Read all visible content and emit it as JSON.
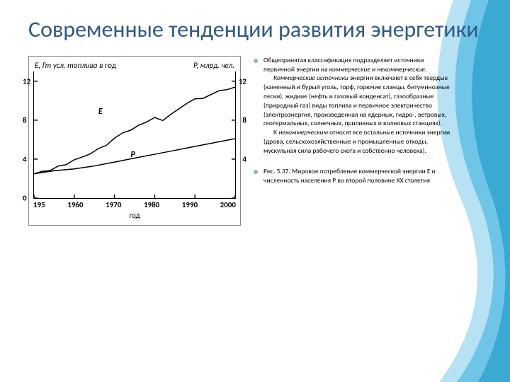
{
  "title_color": "#2e5a8a",
  "bullet_color": "#8fb3b3",
  "wave_colors": [
    "#3aa9d4",
    "#6ec5e8",
    "#b6e2f4"
  ],
  "title": "Современные тенденции развития энергетики",
  "chart": {
    "type": "line",
    "left_axis_label": "E, Гт усл. топлива в год",
    "right_axis_label": "P, млрд. чел.",
    "x_label": "год",
    "y_ticks": [
      "12",
      "8",
      "4",
      "0"
    ],
    "y_ticks_right": [
      "12",
      "8",
      "4"
    ],
    "x_ticks": [
      "195",
      "1960",
      "1970",
      "1980",
      "1990",
      "2000"
    ],
    "ylim": [
      0,
      13
    ],
    "xlim": [
      1950,
      2000
    ],
    "series_E_label": "E",
    "series_P_label": "P",
    "line_color": "#000000",
    "line_width": 1.5,
    "series_E": [
      [
        1950,
        2.5
      ],
      [
        1952,
        2.7
      ],
      [
        1954,
        2.9
      ],
      [
        1956,
        3.2
      ],
      [
        1958,
        3.5
      ],
      [
        1960,
        3.9
      ],
      [
        1962,
        4.2
      ],
      [
        1964,
        4.6
      ],
      [
        1966,
        5.0
      ],
      [
        1968,
        5.5
      ],
      [
        1970,
        6.1
      ],
      [
        1972,
        6.7
      ],
      [
        1974,
        7.0
      ],
      [
        1976,
        7.4
      ],
      [
        1978,
        7.9
      ],
      [
        1980,
        8.2
      ],
      [
        1982,
        8.0
      ],
      [
        1984,
        8.6
      ],
      [
        1986,
        9.1
      ],
      [
        1988,
        9.8
      ],
      [
        1990,
        10.1
      ],
      [
        1992,
        10.3
      ],
      [
        1994,
        10.6
      ],
      [
        1996,
        11.0
      ],
      [
        1998,
        11.2
      ],
      [
        2000,
        11.4
      ]
    ],
    "series_P": [
      [
        1950,
        2.5
      ],
      [
        1955,
        2.8
      ],
      [
        1960,
        3.0
      ],
      [
        1965,
        3.3
      ],
      [
        1970,
        3.7
      ],
      [
        1975,
        4.1
      ],
      [
        1980,
        4.5
      ],
      [
        1985,
        4.9
      ],
      [
        1990,
        5.3
      ],
      [
        1995,
        5.7
      ],
      [
        2000,
        6.1
      ]
    ]
  },
  "bullets": [
    {
      "p1": "Общепринятая классификация подразделяет источники первичной энергии на ",
      "p1_em1": "коммерческие",
      "p1_mid": " и ",
      "p1_em2": "некоммерческие",
      "p1_end": ".",
      "p2_em": "Коммерческие источники",
      "p2": " энергии включают в себя твердые (каменный и бурый уголь, торф, горючие сланцы, битуминозные пески), жидкие (нефть и газовый конденсат), газообразные (природный газ) виды топлива и первичное электричество (электроэнергия, произведенная на ядерных, гидро-, ветровых, геотермальных, солнечных, приливных и волновых станциях).",
      "p3_pre": "К ",
      "p3_em": "некоммерческим",
      "p3": " относят все остальные источники энергии (дрова, сельскохозяйственные и промышленные отходы, мускульная сила рабочего скота и собственно человека)."
    },
    {
      "caption": "Рис. 5.37. Мировое потребление коммерческой энергии E и численность населения P во второй половине XX столетия"
    }
  ]
}
